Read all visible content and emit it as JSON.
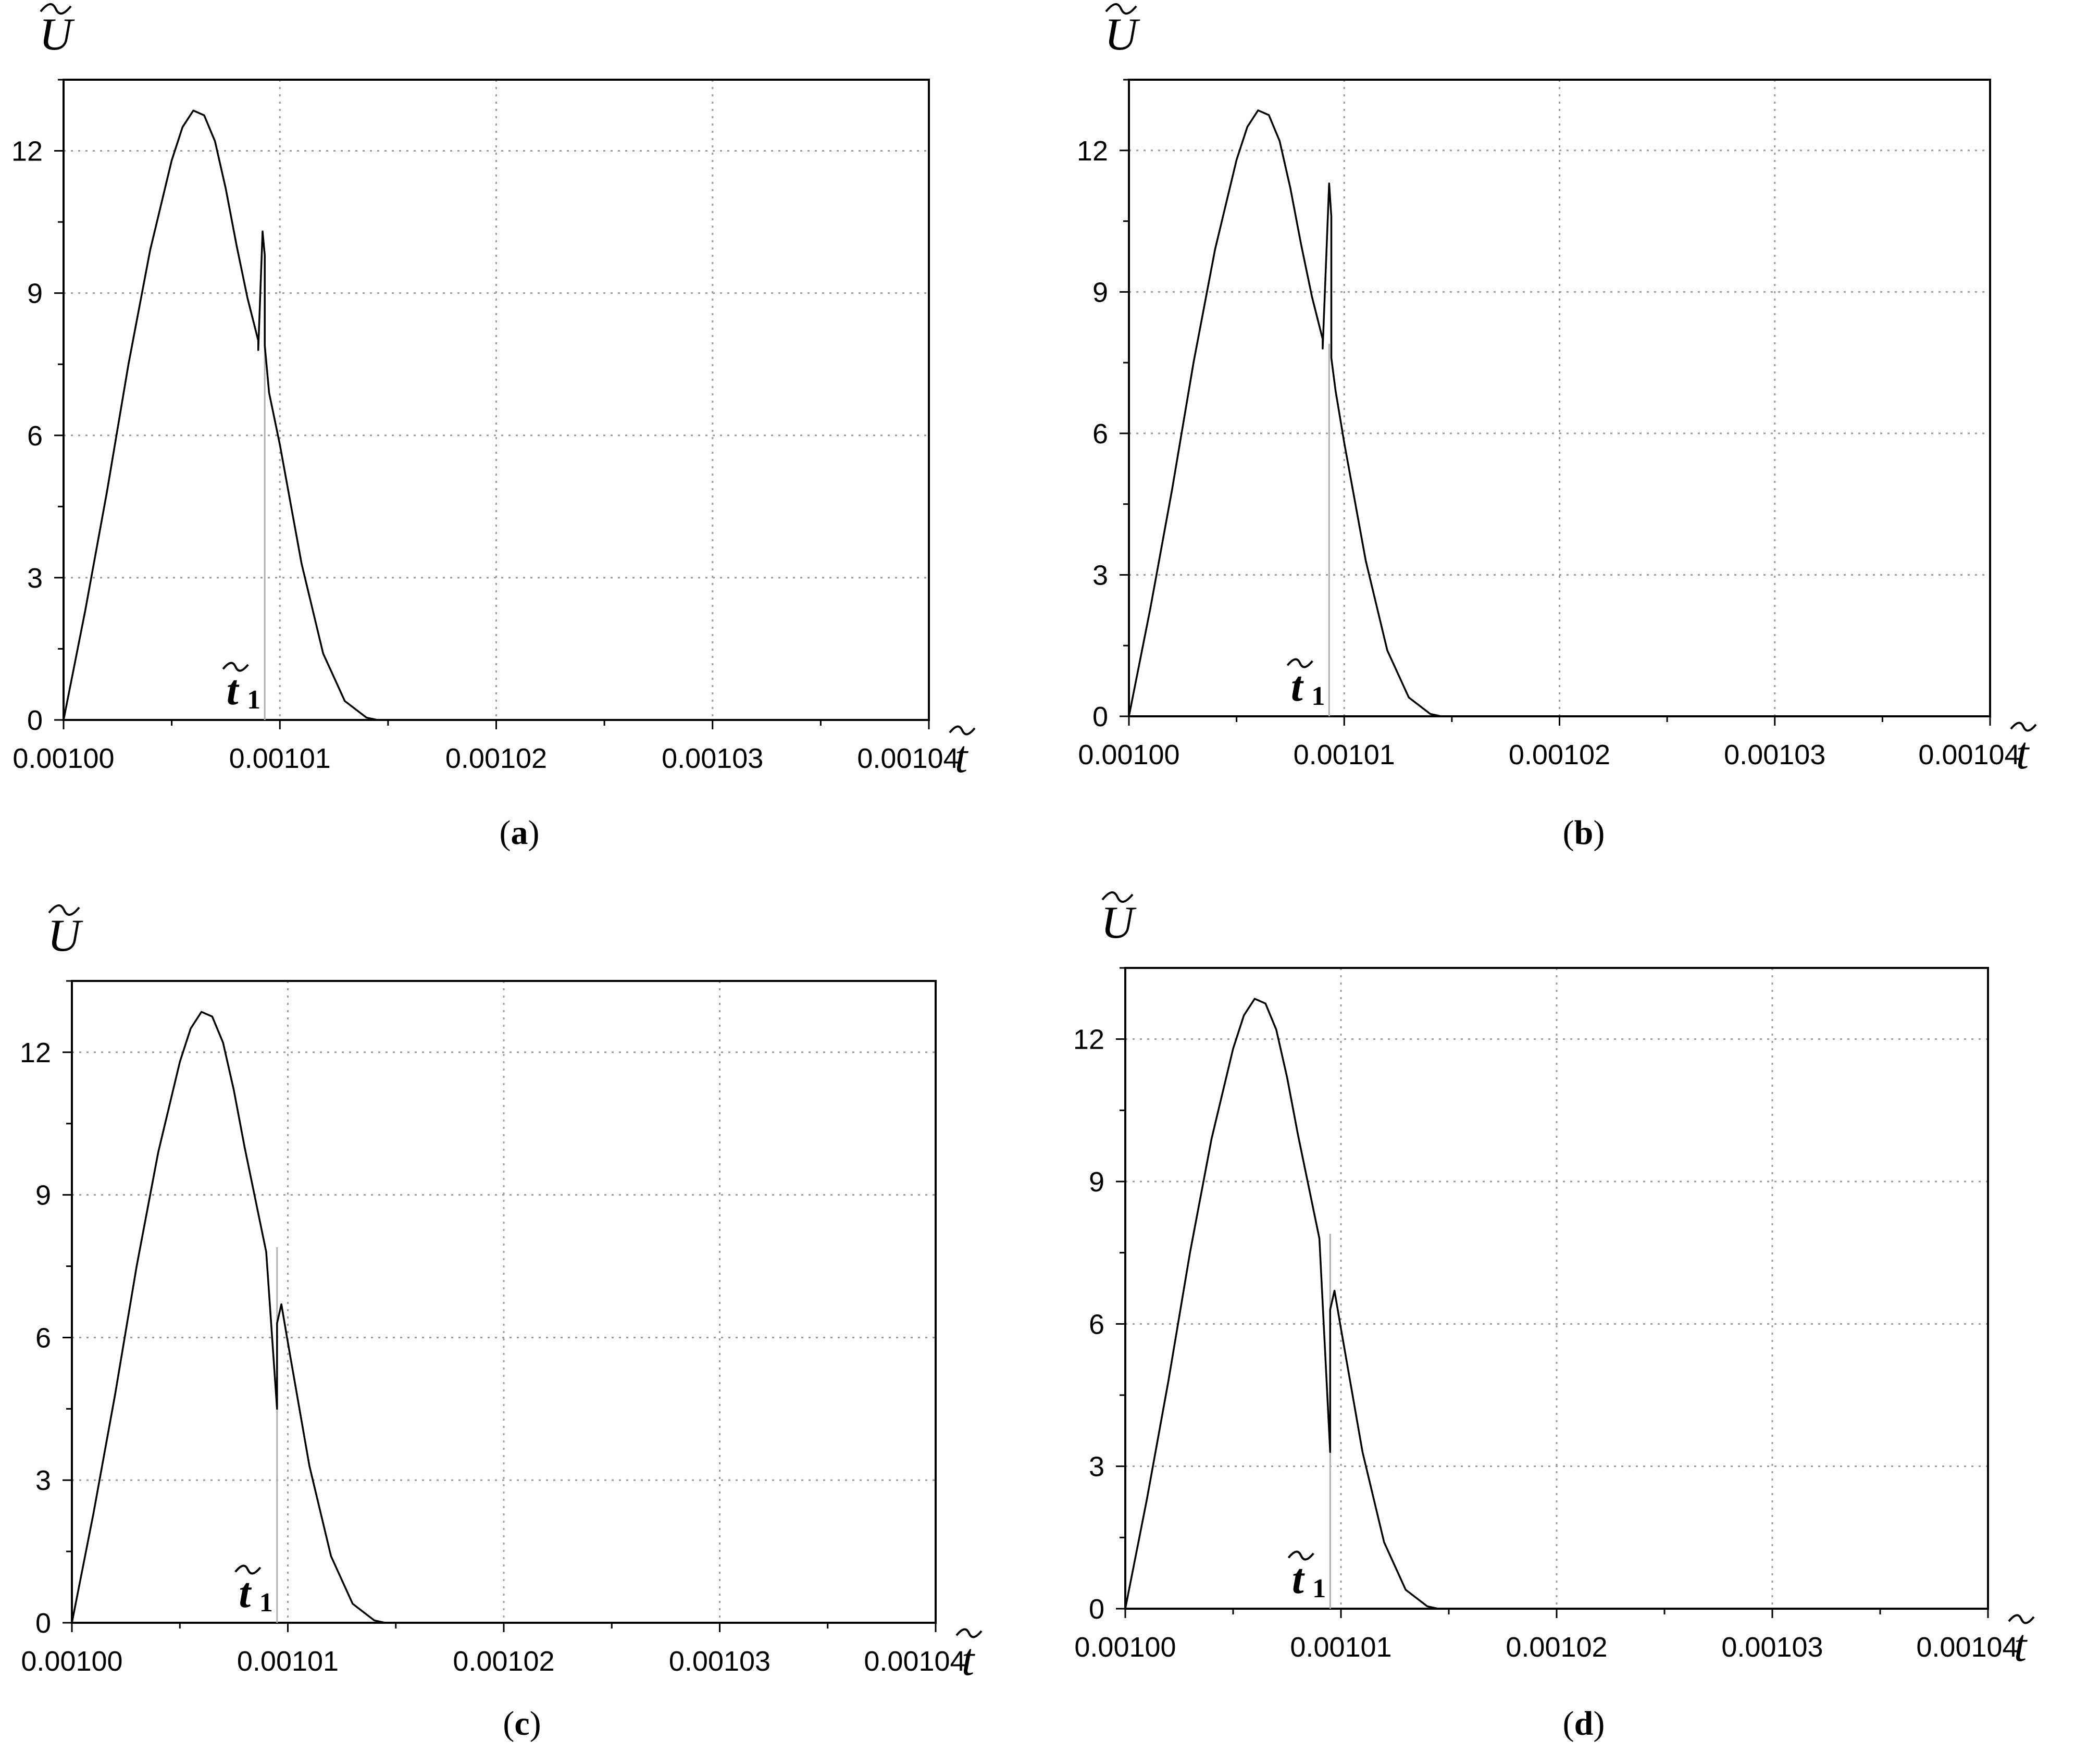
{
  "chart_data": [
    {
      "type": "line",
      "caption_letter": "a",
      "xlabel": "t",
      "ylabel": "U",
      "marker_label": "t",
      "marker_subscript": "1",
      "xlim": [
        0.001,
        0.00104
      ],
      "ylim": [
        0,
        13.5
      ],
      "x_ticks": [
        "0.00100",
        "0.00101",
        "0.00102",
        "0.00103",
        "0.00104"
      ],
      "y_ticks": [
        "0",
        "3",
        "6",
        "9",
        "12"
      ],
      "grid": true,
      "t1": 0.0010093,
      "series": [
        {
          "x": [
            0.001,
            0.001001,
            0.001002,
            0.001003,
            0.001004,
            0.001005,
            0.0010055,
            0.001006,
            0.0010065,
            0.001007,
            0.0010075,
            0.001008,
            0.0010085,
            0.001009,
            0.001009,
            0.0010092,
            0.0010093,
            0.0010093,
            0.0010095,
            0.00101,
            0.001011,
            0.001012,
            0.001013,
            0.001014,
            0.0010145,
            0.00104
          ],
          "y": [
            0,
            2.3,
            4.8,
            7.5,
            9.9,
            11.8,
            12.5,
            12.85,
            12.75,
            12.2,
            11.2,
            10.0,
            8.9,
            8.0,
            7.8,
            10.3,
            9.8,
            7.9,
            6.9,
            5.8,
            3.3,
            1.4,
            0.4,
            0.05,
            0,
            0
          ]
        }
      ]
    },
    {
      "type": "line",
      "caption_letter": "b",
      "xlabel": "t",
      "ylabel": "U",
      "marker_label": "t",
      "marker_subscript": "1",
      "xlim": [
        0.001,
        0.00104
      ],
      "ylim": [
        0,
        13.5
      ],
      "x_ticks": [
        "0.00100",
        "0.00101",
        "0.00102",
        "0.00103",
        "0.00104"
      ],
      "y_ticks": [
        "0",
        "3",
        "6",
        "9",
        "12"
      ],
      "grid": true,
      "t1": 0.0010093,
      "series": [
        {
          "x": [
            0.001,
            0.001001,
            0.001002,
            0.001003,
            0.001004,
            0.001005,
            0.0010055,
            0.001006,
            0.0010065,
            0.001007,
            0.0010075,
            0.001008,
            0.0010085,
            0.001009,
            0.001009,
            0.0010093,
            0.0010094,
            0.0010094,
            0.0010096,
            0.00101,
            0.001011,
            0.001012,
            0.001013,
            0.001014,
            0.0010145,
            0.00104
          ],
          "y": [
            0,
            2.3,
            4.8,
            7.5,
            9.9,
            11.8,
            12.5,
            12.85,
            12.75,
            12.2,
            11.2,
            10.0,
            8.9,
            8.0,
            7.8,
            11.3,
            10.6,
            7.6,
            6.9,
            5.8,
            3.3,
            1.4,
            0.4,
            0.05,
            0,
            0
          ]
        }
      ]
    },
    {
      "type": "line",
      "caption_letter": "c",
      "xlabel": "t",
      "ylabel": "U",
      "marker_label": "t",
      "marker_subscript": "1",
      "xlim": [
        0.001,
        0.00104
      ],
      "ylim": [
        0,
        13.5
      ],
      "x_ticks": [
        "0.00100",
        "0.00101",
        "0.00102",
        "0.00103",
        "0.00104"
      ],
      "y_ticks": [
        "0",
        "3",
        "6",
        "9",
        "12"
      ],
      "grid": true,
      "t1": 0.0010095,
      "series": [
        {
          "x": [
            0.001,
            0.001001,
            0.001002,
            0.001003,
            0.001004,
            0.001005,
            0.0010055,
            0.001006,
            0.0010065,
            0.001007,
            0.0010075,
            0.001008,
            0.0010085,
            0.001009,
            0.001009,
            0.0010095,
            0.0010095,
            0.0010097,
            0.00101,
            0.001011,
            0.001012,
            0.001013,
            0.001014,
            0.0010145,
            0.00104
          ],
          "y": [
            0,
            2.3,
            4.8,
            7.5,
            9.9,
            11.8,
            12.5,
            12.85,
            12.75,
            12.2,
            11.2,
            10.0,
            8.9,
            7.8,
            7.8,
            4.5,
            6.3,
            6.7,
            5.9,
            3.3,
            1.4,
            0.4,
            0.05,
            0,
            0
          ]
        }
      ]
    },
    {
      "type": "line",
      "caption_letter": "d",
      "xlabel": "t",
      "ylabel": "U",
      "marker_label": "t",
      "marker_subscript": "1",
      "xlim": [
        0.001,
        0.00104
      ],
      "ylim": [
        0,
        13.5
      ],
      "x_ticks": [
        "0.00100",
        "0.00101",
        "0.00102",
        "0.00103",
        "0.00104"
      ],
      "y_ticks": [
        "0",
        "3",
        "6",
        "9",
        "12"
      ],
      "grid": true,
      "t1": 0.0010095,
      "series": [
        {
          "x": [
            0.001,
            0.001001,
            0.001002,
            0.001003,
            0.001004,
            0.001005,
            0.0010055,
            0.001006,
            0.0010065,
            0.001007,
            0.0010075,
            0.001008,
            0.0010085,
            0.001009,
            0.001009,
            0.0010095,
            0.0010095,
            0.0010097,
            0.00101,
            0.001011,
            0.001012,
            0.001013,
            0.001014,
            0.0010145,
            0.00104
          ],
          "y": [
            0,
            2.3,
            4.8,
            7.5,
            9.9,
            11.8,
            12.5,
            12.85,
            12.75,
            12.2,
            11.2,
            10.0,
            8.9,
            7.8,
            7.8,
            3.3,
            6.3,
            6.7,
            5.9,
            3.3,
            1.4,
            0.4,
            0.05,
            0,
            0
          ]
        }
      ]
    }
  ]
}
